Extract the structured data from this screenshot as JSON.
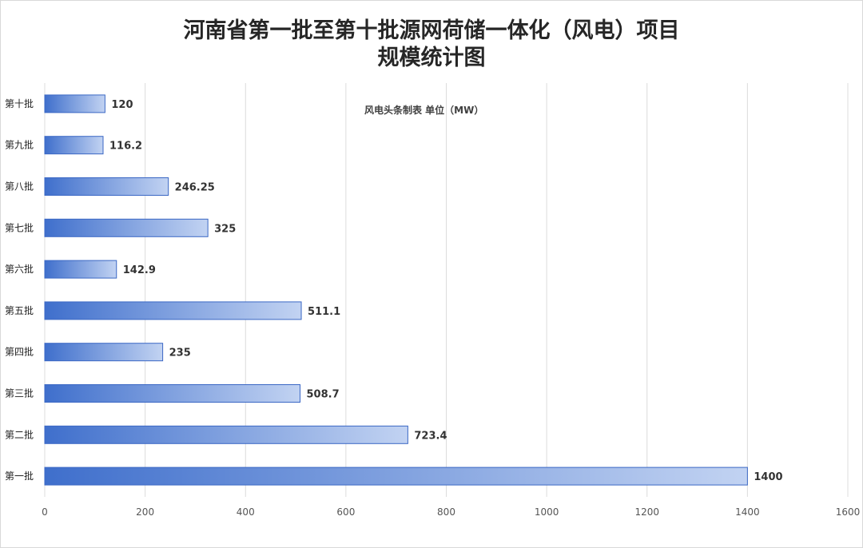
{
  "title_line1": "河南省第一批至第十批源网荷储一体化（风电）项目",
  "title_line2": "规模统计图",
  "note": "风电头条制表  单位（MW）",
  "chart_data": {
    "type": "bar",
    "orientation": "horizontal",
    "categories": [
      "第十批",
      "第九批",
      "第八批",
      "第七批",
      "第六批",
      "第五批",
      "第四批",
      "第三批",
      "第二批",
      "第一批"
    ],
    "values": [
      120,
      116.2,
      246.25,
      325,
      142.9,
      511.1,
      235,
      508.7,
      723.4,
      1400
    ],
    "value_labels": [
      "120",
      "116.2",
      "246.25",
      "325",
      "142.9",
      "511.1",
      "235",
      "508.7",
      "723.4",
      "1400"
    ],
    "xlim": [
      0,
      1600
    ],
    "xticks": [
      "0",
      "200",
      "400",
      "600",
      "800",
      "1000",
      "1200",
      "1400",
      "1600"
    ],
    "grid": "vertical",
    "bar_gradient": [
      "#3f6fcc",
      "#c2d3f2"
    ],
    "bar_border": "#3a67c4"
  }
}
